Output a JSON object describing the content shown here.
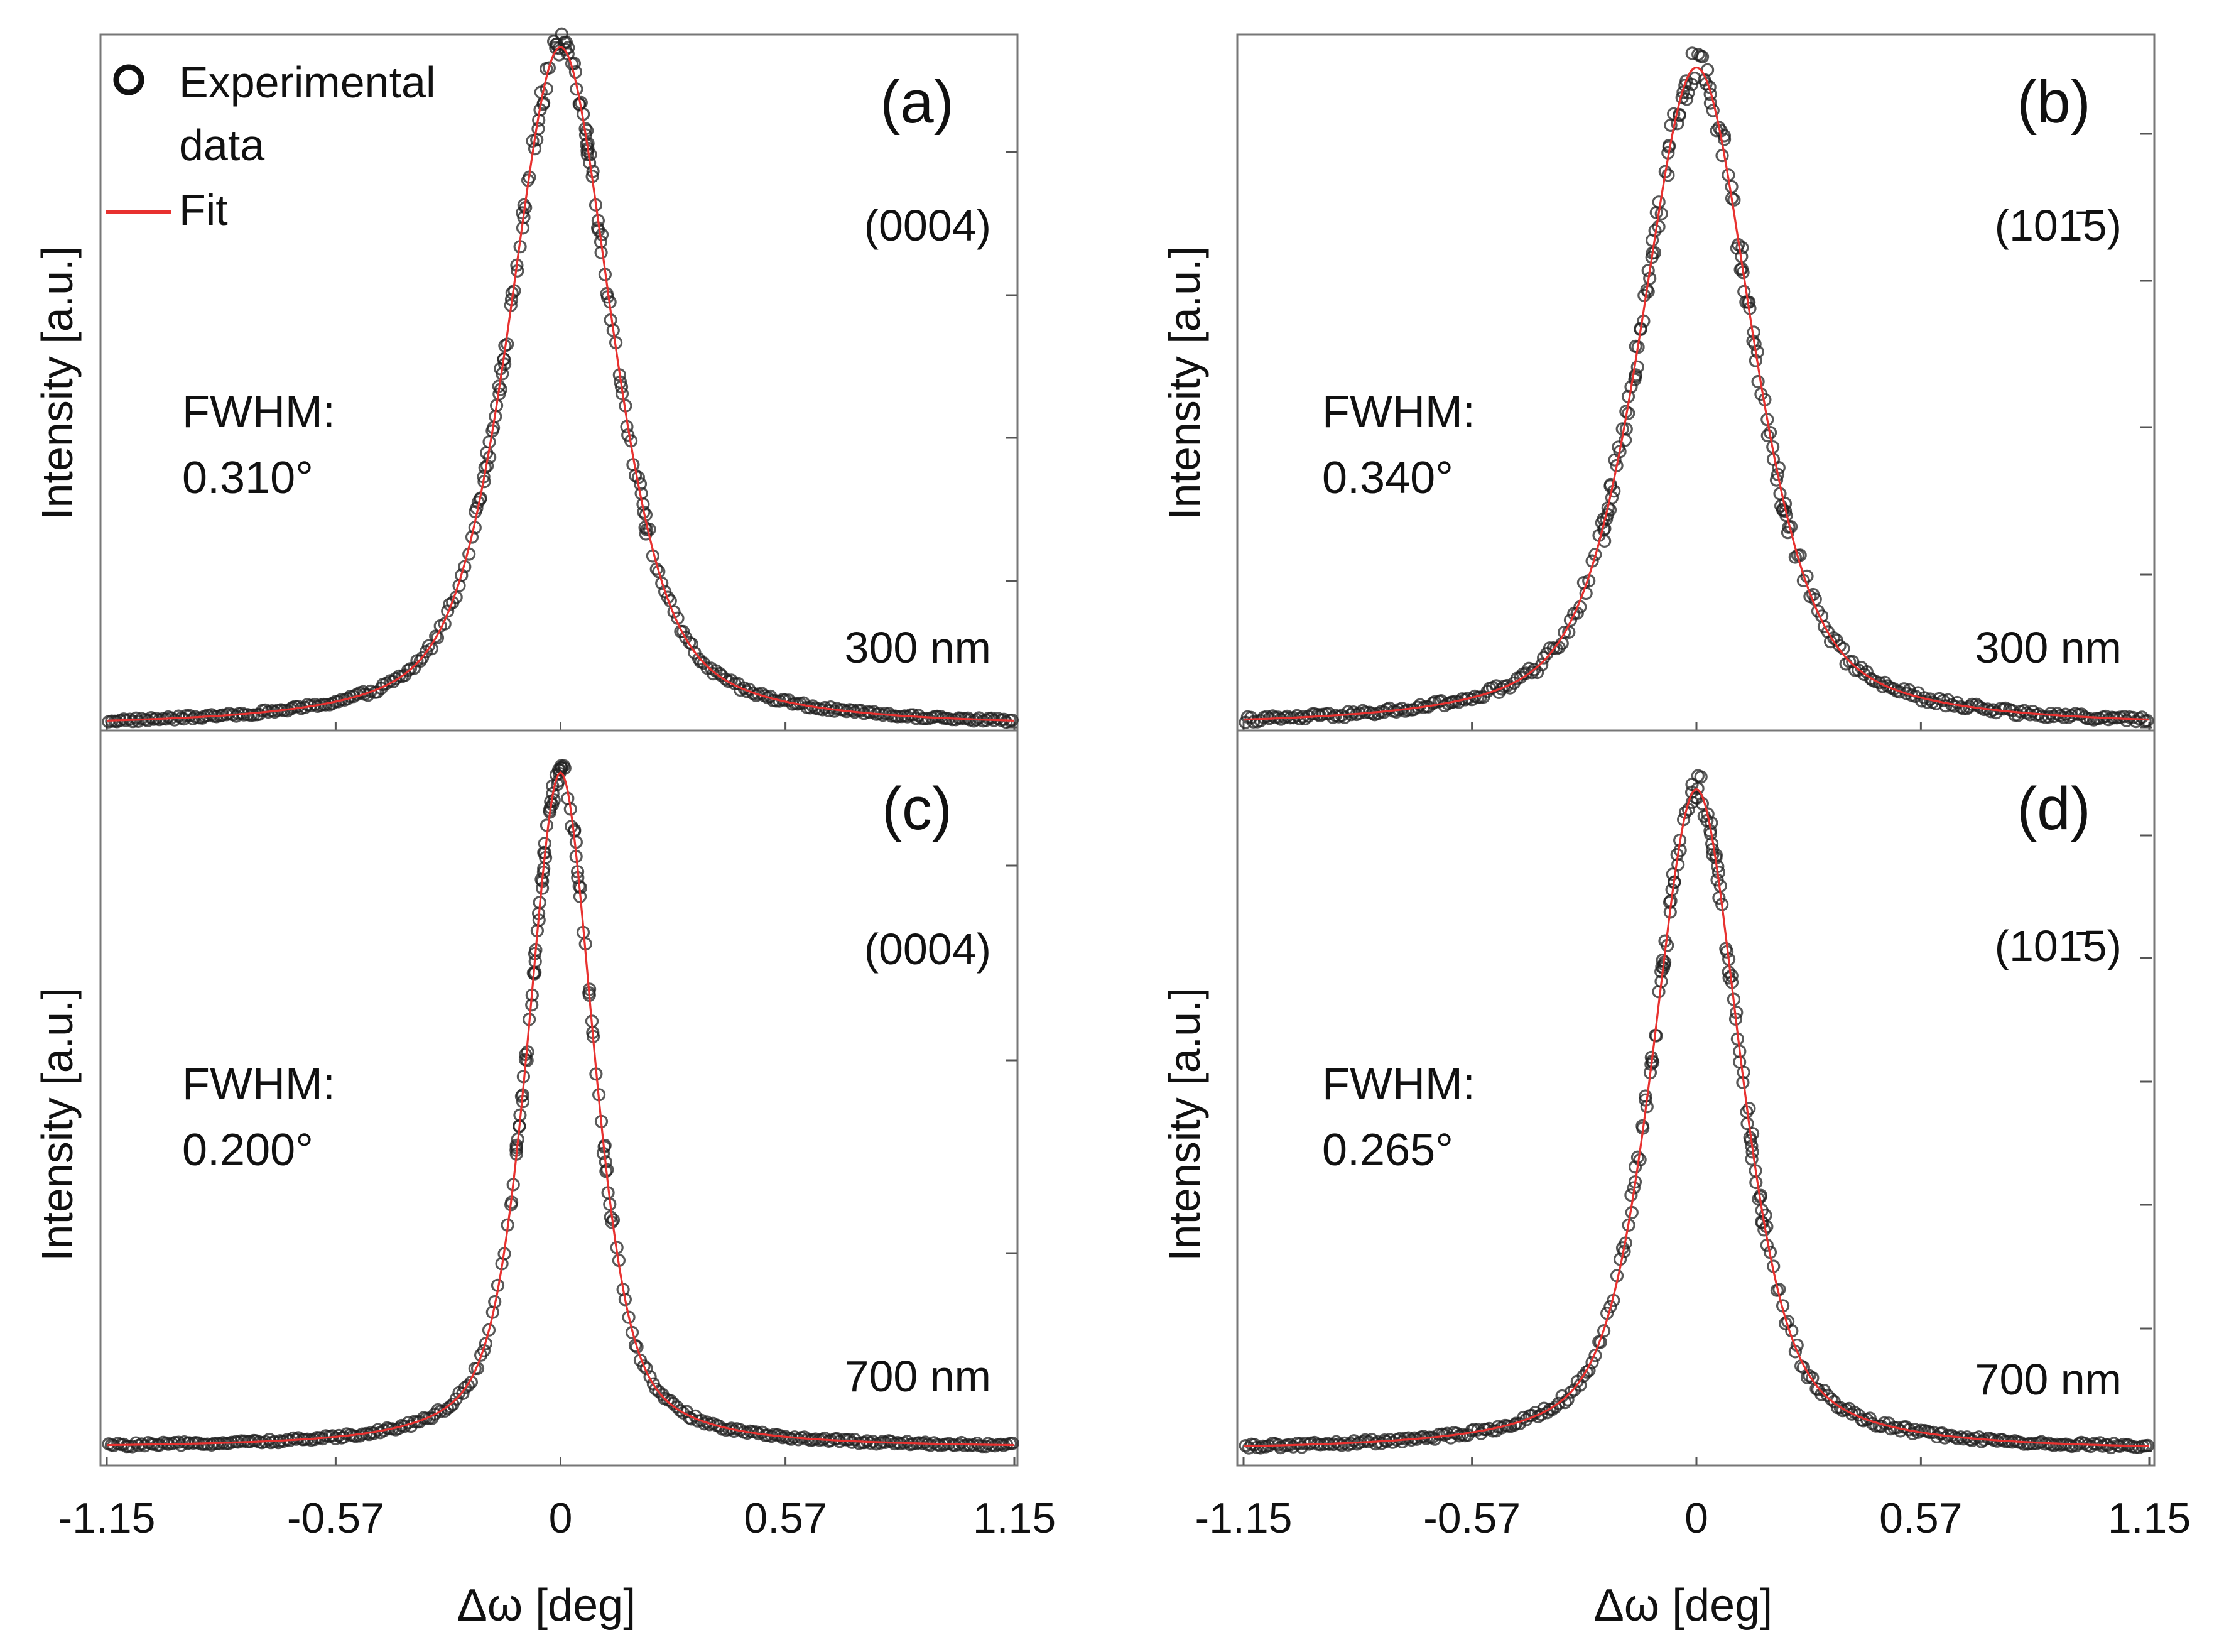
{
  "figure": {
    "x_axis_label": "Δω [deg]",
    "y_axis_label": "Intensity [a.u.]",
    "legend": {
      "experimental": "Experimental data",
      "experimental_line1": "Experimental",
      "experimental_line2": "data",
      "fit": "Fit"
    },
    "colors": {
      "fit": "#e8312f",
      "points": "#222222",
      "frame": "#777777"
    }
  },
  "chart_data": [
    {
      "type": "scatter",
      "panel": "(a)",
      "reflection": "(0004)",
      "thickness": "300 nm",
      "fwhm_label": "FWHM:",
      "fwhm_value": "0.310°",
      "fwhm": 0.31,
      "xlabel": "Δω [deg]",
      "ylabel": "Intensity [a.u.]",
      "xlim": [
        -1.15,
        1.15
      ],
      "ylim": [
        0,
        1
      ],
      "xticks": [
        -1.15,
        -0.57,
        0,
        0.57,
        1.15
      ],
      "xtick_labels": [
        "-1.15",
        "-0.57",
        "0",
        "0.57",
        "1.15"
      ],
      "series": [
        {
          "name": "Experimental data",
          "kind": "markers",
          "center": 0.0,
          "fwhm": 0.31,
          "peak": 1.0,
          "noise": 0.02
        },
        {
          "name": "Fit",
          "kind": "line",
          "center": 0.0,
          "fwhm": 0.31,
          "peak": 1.0
        }
      ]
    },
    {
      "type": "scatter",
      "panel": "(b)",
      "reflection": "(101̄5)",
      "thickness": "300 nm",
      "fwhm_label": "FWHM:",
      "fwhm_value": "0.340°",
      "fwhm": 0.34,
      "xlabel": "Δω [deg]",
      "ylabel": "Intensity [a.u.]",
      "xlim": [
        -1.15,
        1.15
      ],
      "ylim": [
        0,
        1
      ],
      "xticks": [
        -1.15,
        -0.57,
        0,
        0.57,
        1.15
      ],
      "xtick_labels": [
        "-1.15",
        "-0.57",
        "0",
        "0.57",
        "1.15"
      ],
      "series": [
        {
          "name": "Experimental data",
          "kind": "markers",
          "center": 0.0,
          "fwhm": 0.34,
          "peak": 0.97,
          "noise": 0.03
        },
        {
          "name": "Fit",
          "kind": "line",
          "center": 0.0,
          "fwhm": 0.34,
          "peak": 0.97
        }
      ]
    },
    {
      "type": "scatter",
      "panel": "(c)",
      "reflection": "(0004)",
      "thickness": "700 nm",
      "fwhm_label": "FWHM:",
      "fwhm_value": "0.200°",
      "fwhm": 0.2,
      "xlabel": "Δω [deg]",
      "ylabel": "Intensity [a.u.]",
      "xlim": [
        -1.15,
        1.15
      ],
      "ylim": [
        0,
        1
      ],
      "xticks": [
        -1.15,
        -0.57,
        0,
        0.57,
        1.15
      ],
      "xtick_labels": [
        "-1.15",
        "-0.57",
        "0",
        "0.57",
        "1.15"
      ],
      "series": [
        {
          "name": "Experimental data",
          "kind": "markers",
          "center": 0.0,
          "fwhm": 0.2,
          "peak": 1.0,
          "noise": 0.02
        },
        {
          "name": "Fit",
          "kind": "line",
          "center": 0.0,
          "fwhm": 0.2,
          "peak": 1.0
        }
      ]
    },
    {
      "type": "scatter",
      "panel": "(d)",
      "reflection": "(101̄5)",
      "thickness": "700 nm",
      "fwhm_label": "FWHM:",
      "fwhm_value": "0.265°",
      "fwhm": 0.265,
      "xlabel": "Δω [deg]",
      "ylabel": "Intensity [a.u.]",
      "xlim": [
        -1.15,
        1.15
      ],
      "ylim": [
        0,
        1
      ],
      "xticks": [
        -1.15,
        -0.57,
        0,
        0.57,
        1.15
      ],
      "xtick_labels": [
        "-1.15",
        "-0.57",
        "0",
        "0.57",
        "1.15"
      ],
      "series": [
        {
          "name": "Experimental data",
          "kind": "markers",
          "center": 0.0,
          "fwhm": 0.265,
          "peak": 0.98,
          "noise": 0.025
        },
        {
          "name": "Fit",
          "kind": "line",
          "center": 0.0,
          "fwhm": 0.265,
          "peak": 0.98
        }
      ]
    }
  ]
}
